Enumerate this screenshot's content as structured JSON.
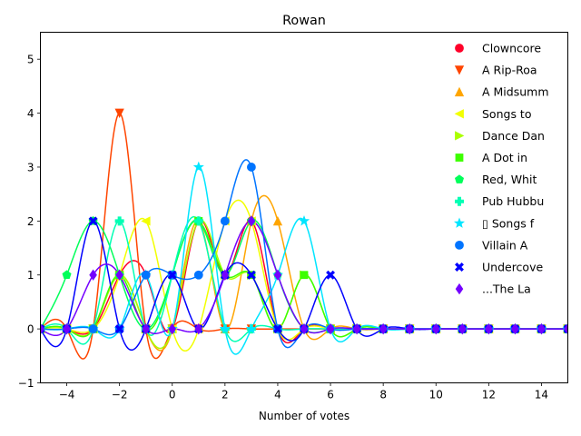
{
  "chart_data": {
    "type": "line",
    "title": "Rowan",
    "xlabel": "Number of votes",
    "ylabel": "",
    "xlim": [
      -5,
      15
    ],
    "ylim": [
      -1,
      5.5
    ],
    "x_ticks": [
      -4,
      -2,
      0,
      2,
      4,
      6,
      8,
      10,
      12,
      14
    ],
    "y_ticks": [
      -1,
      0,
      1,
      2,
      3,
      4,
      5
    ],
    "grid": false,
    "legend_position": "top-right",
    "x": [
      -5,
      -4,
      -3,
      -2,
      -1,
      0,
      1,
      2,
      3,
      4,
      5,
      6,
      7,
      8,
      9,
      10,
      11,
      12,
      13,
      14,
      15
    ],
    "series": [
      {
        "name": "Clowncore",
        "color": "#ff0029",
        "marker": "circle",
        "values": [
          0,
          0,
          0,
          1,
          1,
          0,
          2,
          1,
          2,
          0,
          0,
          0,
          0,
          0,
          0,
          0,
          0,
          0,
          0,
          0,
          0
        ]
      },
      {
        "name": "A Rip-Roa",
        "color": "#ff4500",
        "marker": "triangle-down",
        "values": [
          0,
          0,
          0,
          4,
          0,
          0,
          0,
          0,
          0,
          0,
          0,
          0,
          0,
          0,
          0,
          0,
          0,
          0,
          0,
          0,
          0
        ]
      },
      {
        "name": "A Midsumm",
        "color": "#ffa500",
        "marker": "triangle-up",
        "values": [
          0,
          0,
          0,
          1,
          0,
          0,
          2,
          0,
          2,
          2,
          0,
          0,
          0,
          0,
          0,
          0,
          0,
          0,
          0,
          0,
          0
        ]
      },
      {
        "name": "Songs to",
        "color": "#f2ff00",
        "marker": "triangle-left",
        "values": [
          0,
          0,
          0,
          1,
          2,
          0,
          0,
          2,
          2,
          0,
          0,
          0,
          0,
          0,
          0,
          0,
          0,
          0,
          0,
          0,
          0
        ]
      },
      {
        "name": "Dance Dan",
        "color": "#aaff00",
        "marker": "triangle-right",
        "values": [
          0,
          0,
          0,
          1,
          0,
          0,
          2,
          1,
          1,
          0,
          1,
          0,
          0,
          0,
          0,
          0,
          0,
          0,
          0,
          0,
          0
        ]
      },
      {
        "name": "A Dot in",
        "color": "#3cff00",
        "marker": "square",
        "values": [
          0,
          0,
          0,
          1,
          0,
          1,
          2,
          1,
          1,
          0,
          1,
          0,
          0,
          0,
          0,
          0,
          0,
          0,
          0,
          0,
          0
        ]
      },
      {
        "name": "Red, Whit",
        "color": "#00ff5a",
        "marker": "pentagon",
        "values": [
          0,
          1,
          2,
          1,
          0,
          1,
          2,
          1,
          2,
          1,
          0,
          0,
          0,
          0,
          0,
          0,
          0,
          0,
          0,
          0,
          0
        ]
      },
      {
        "name": "Pub Hubbu",
        "color": "#00ffb4",
        "marker": "plus",
        "values": [
          0,
          0,
          0,
          2,
          0,
          1,
          2,
          0,
          0,
          0,
          0,
          0,
          0,
          0,
          0,
          0,
          0,
          0,
          0,
          0,
          0
        ]
      },
      {
        "name": "\u0000 Songs f",
        "color": "#00e5ff",
        "marker": "star",
        "values": [
          0,
          0,
          0,
          0,
          1,
          0,
          3,
          0,
          0,
          1,
          2,
          0,
          0,
          0,
          0,
          0,
          0,
          0,
          0,
          0,
          0
        ]
      },
      {
        "name": "Villain A",
        "color": "#0074ff",
        "marker": "circle",
        "values": [
          0,
          0,
          0,
          0,
          1,
          1,
          1,
          2,
          3,
          0,
          0,
          0,
          0,
          0,
          0,
          0,
          0,
          0,
          0,
          0,
          0
        ]
      },
      {
        "name": "Undercove",
        "color": "#0000ff",
        "marker": "x",
        "values": [
          0,
          0,
          2,
          0,
          0,
          1,
          0,
          1,
          1,
          0,
          0,
          1,
          0,
          0,
          0,
          0,
          0,
          0,
          0,
          0,
          0
        ]
      },
      {
        "name": "...The La",
        "color": "#7400ff",
        "marker": "diamond",
        "values": [
          0,
          0,
          1,
          1,
          0,
          0,
          0,
          1,
          2,
          1,
          0,
          0,
          0,
          0,
          0,
          0,
          0,
          0,
          0,
          0,
          0
        ]
      }
    ]
  }
}
